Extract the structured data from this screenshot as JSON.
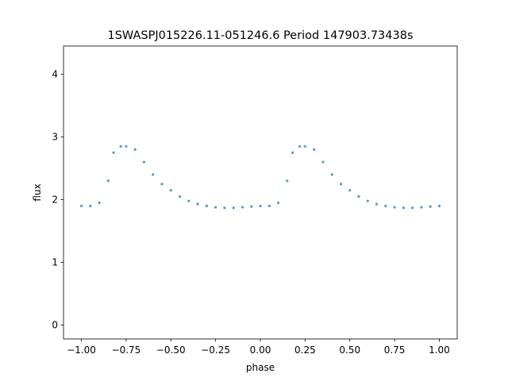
{
  "chart_data": {
    "type": "scatter",
    "title": "1SWASPJ015226.11-051246.6 Period 147903.73438s",
    "xlabel": "phase",
    "ylabel": "flux",
    "xlim": [
      -1.1,
      1.1
    ],
    "ylim": [
      -0.22,
      4.45
    ],
    "x_ticks": [
      -1.0,
      -0.75,
      -0.5,
      -0.25,
      0.0,
      0.25,
      0.5,
      0.75,
      1.0
    ],
    "x_tick_labels": [
      "−1.00",
      "−0.75",
      "−0.50",
      "−0.25",
      "0.00",
      "0.25",
      "0.50",
      "0.75",
      "1.00"
    ],
    "y_ticks": [
      0,
      1,
      2,
      3,
      4
    ],
    "y_tick_labels": [
      "0",
      "1",
      "2",
      "3",
      "4"
    ],
    "grid": false,
    "marker_color": "#1f77b4",
    "series": [
      {
        "x": [
          -1.0,
          -0.95,
          -0.9,
          -0.85,
          -0.82,
          -0.78,
          -0.75,
          -0.7,
          -0.65,
          -0.6,
          -0.55,
          -0.5,
          -0.45,
          -0.4,
          -0.35,
          -0.3,
          -0.25,
          -0.2,
          -0.15,
          -0.1,
          -0.05,
          0.0,
          0.05,
          0.1,
          0.15,
          0.18,
          0.22,
          0.25,
          0.3,
          0.35,
          0.4,
          0.45,
          0.5,
          0.55,
          0.6,
          0.65,
          0.7,
          0.75,
          0.8,
          0.85,
          0.9,
          0.95,
          1.0
        ],
        "y": [
          1.9,
          1.9,
          1.95,
          2.3,
          2.75,
          2.85,
          2.85,
          2.8,
          2.6,
          2.4,
          2.25,
          2.15,
          2.05,
          1.98,
          1.93,
          1.9,
          1.88,
          1.87,
          1.87,
          1.88,
          1.89,
          1.9,
          1.9,
          1.95,
          2.3,
          2.75,
          2.85,
          2.85,
          2.8,
          2.6,
          2.4,
          2.25,
          2.15,
          2.05,
          1.98,
          1.93,
          1.9,
          1.88,
          1.87,
          1.87,
          1.88,
          1.89,
          1.9
        ]
      }
    ]
  }
}
